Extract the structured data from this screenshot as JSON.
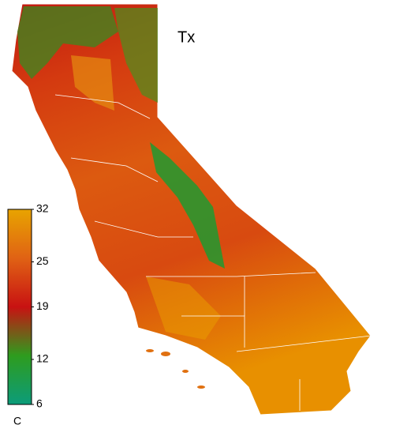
{
  "title": "Tx",
  "colorbar": {
    "unit": "C",
    "lim": [
      6,
      32
    ],
    "ticks": [
      32,
      25,
      19,
      12,
      6
    ],
    "colors": [
      "#e8a400",
      "#e06214",
      "#c81212",
      "#2e9c1e",
      "#0c9c7a"
    ]
  }
}
